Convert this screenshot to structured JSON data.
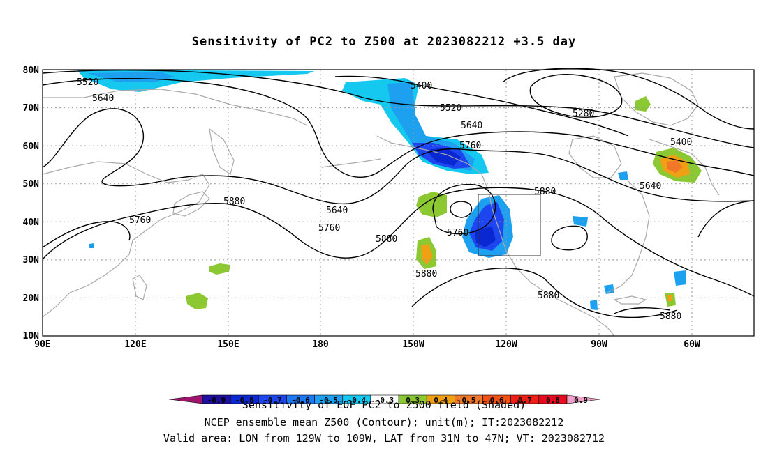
{
  "title": "Sensitivity of PC2 to Z500 at 2023082212 +3.5 day",
  "captions": {
    "line1": "Sensitivity of EOF PC2 to Z500 field (Shaded)",
    "line2": "NCEP ensemble mean Z500 (Contour); unit(m); IT:2023082212",
    "line3": "Valid area: LON from 129W to 109W, LAT from 31N to 47N; VT: 2023082712"
  },
  "map": {
    "lon_labels": [
      "90E",
      "120E",
      "150E",
      "180",
      "150W",
      "120W",
      "90W",
      "60W"
    ],
    "lat_labels": [
      "80N",
      "70N",
      "60N",
      "50N",
      "40N",
      "30N",
      "20N",
      "10N"
    ],
    "contour_labels": [
      "5520",
      "5640",
      "5400",
      "5520",
      "5640",
      "5760",
      "5280",
      "5400",
      "5640",
      "5880",
      "5880",
      "5760",
      "5640",
      "5760",
      "5880",
      "5760",
      "5880",
      "5880",
      "5880"
    ],
    "valid_area": {
      "lon_min": -129,
      "lon_max": -109,
      "lat_min": 31,
      "lat_max": 47
    }
  },
  "colorbar": {
    "ticks": [
      "-0.9",
      "-0.8",
      "-0.7",
      "-0.6",
      "-0.5",
      "-0.4",
      "-0.3",
      "0.3",
      "0.4",
      "0.5",
      "0.6",
      "0.7",
      "0.8",
      "0.9"
    ],
    "colors": [
      "#a0146e",
      "#1e0fa0",
      "#0a28d2",
      "#1e46f0",
      "#1e78f0",
      "#1ea0f0",
      "#14c8f0",
      "#ffffff",
      "#8cc832",
      "#f0a014",
      "#f07828",
      "#f05014",
      "#f01e14",
      "#e60a1e",
      "#f0a0c8"
    ]
  }
}
